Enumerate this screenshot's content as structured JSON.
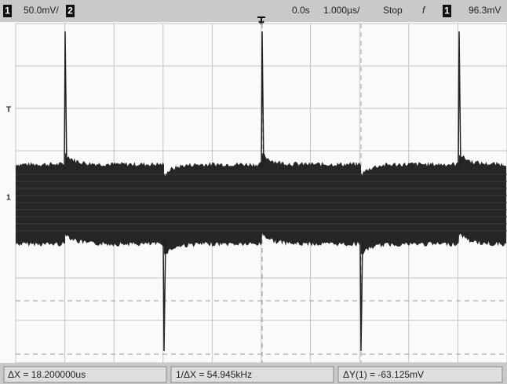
{
  "top_bar": {
    "channel_1": "1",
    "scale_1": "50.0mV/",
    "channel_2": "2",
    "time_delay": "0.0s",
    "time_scale": "1.000µs/",
    "run_state": "Stop",
    "trigger_edge": "f",
    "trigger_channel": "1",
    "trigger_level": "96.3mV"
  },
  "markers": {
    "trigger": "T",
    "channel": "1"
  },
  "measurements": [
    "ΔX = 18.200000us",
    "1/ΔX = 54.945kHz",
    "ΔY(1) = -63.125mV"
  ]
}
